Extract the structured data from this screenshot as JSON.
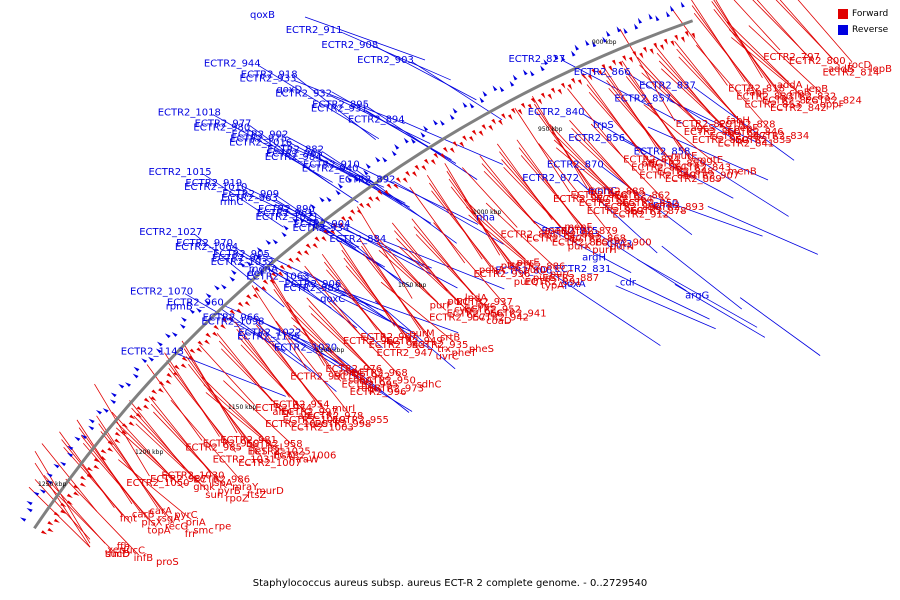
{
  "caption": "Staphylococcus aureus subsp. aureus ECT-R 2 complete genome. - 0..2729540",
  "legend": [
    {
      "label": "Forward",
      "color": "#e00000"
    },
    {
      "label": "Reverse",
      "color": "#0000e0"
    }
  ],
  "ticks": [
    "900 kbp",
    "950 kbp",
    "1000 kbp",
    "1050 kbp",
    "1100 kbp",
    "1150 kbp",
    "1200 kbp",
    "1250 kbp"
  ],
  "colors": {
    "forward": "#e00000",
    "reverse": "#0000e0",
    "backbone": "#808080"
  },
  "reverse_labels": [
    "qoxB",
    "ECTR2_911",
    "ECTR2_908",
    "ECTR2_903",
    "ECTR2_918",
    "qoxD",
    "ECTR2_895",
    "ECTR2_894",
    "ECTR2_902",
    "ECTR2_882",
    "ECTR2_910",
    "ECTR2_892",
    "ECTR2_909",
    "ECTR2_890",
    "ECTR2_904",
    "ECTR2_884",
    "ECTR2_905",
    "menA",
    "ECTR2_906",
    "qoxC",
    "ECTR2_944",
    "ECTR2_933",
    "ECTR2_932",
    "ECTR2_931",
    "ECTR2_977",
    "ECTR2_975",
    "ECTR2_965",
    "ECTR2_940",
    "ECTR2_919",
    "ECTR2_963",
    "ECTR2_961",
    "ECTR2_934",
    "ECTR2_970",
    "ECTR2_945",
    "def",
    "ECTR2_983",
    "ECTR2_960",
    "ECTR2_966",
    "ECTR2_1022",
    "ECTR2_1020",
    "ECTR2_1018",
    "ECTR2_980",
    "ECTR2_1016",
    "ECTR2_984",
    "ECTR2_1015",
    "ECTR2_1010",
    "rnhC",
    "ECTR2_1021",
    "ECTR2_1027",
    "ECTR2_1064",
    "ECTR2_1032",
    "ECTR2_1063",
    "ECTR2_1070",
    "rpmB",
    "ECTR2_1098",
    "ECTR2_1155",
    "ECTR2_1143",
    "ECTR2_831",
    "cdr",
    "argG",
    "ECTR2_827",
    "ECTR2_866",
    "ECTR2_837",
    "ECTR2_857",
    "ECTR2_840",
    "trpS",
    "ECTR2_856",
    "ECTR2_858",
    "ECTR2_870",
    "ECTR2_872",
    "mnhC",
    "phaD",
    "nha",
    "ECTR2_815",
    "CPA3",
    "argH",
    "ECTR2_806",
    "qoxA"
  ],
  "forward_labels": [
    "ECTR2_797",
    "ECTR2_800",
    "rocD",
    "lepB",
    "addA",
    "lepB",
    "addB",
    "ECTR2_814",
    "ECTR2_818",
    "clpB",
    "ECTR2_832",
    "ECTR2_824",
    "fabF",
    "ECTR2_833",
    "ECTR2_825",
    "oppF",
    "fabH",
    "ECTR2_828",
    "ECTR2_853",
    "ECTR2_842",
    "ECTR2_829",
    "pepF",
    "ECTR2_846",
    "ECTR2_834",
    "agcS",
    "ECTR2_860",
    "ECTR2_847",
    "ECTR2_835",
    "murE",
    "mgtE",
    "ECTR2_850",
    "ECTR2_841",
    "ECTR2_874",
    "ECTR2_859",
    "ECTR2_843",
    "menB",
    "prfC",
    "ECTR2_861",
    "ECTR2_848",
    "ECTR2_907",
    "ECTR2_888",
    "ECTR2_862",
    "ECTR2_849",
    "ECTR2_889",
    "ECTR2_876",
    "ECTR2_864",
    "ECTR2_852",
    "ECTR2_893",
    "ECTR2_877",
    "ECTR2_865",
    "ECTR2_896",
    "ECTR2_878",
    "menF",
    "ECTR2_879",
    "ECTR2_869",
    "ECTR2_912",
    "menD",
    "ECTR2_883",
    "ECTR2_868",
    "ECTR2_900",
    "ECTR2_871",
    "ECTR2_917",
    "ECTR2_885",
    "purN",
    "purE",
    "ECTR2_886",
    "purK",
    "purH",
    "ptsP",
    "purD",
    "purC",
    "ECTR2_887",
    "pdhA",
    "ECTR2_936",
    "purS",
    "ECTR2_891",
    "lpdA",
    "ECTR2_937",
    "purQ",
    "typA",
    "purL",
    "pyc",
    "ECTR2_952",
    "ECTR2_941",
    "purF",
    "cyoE",
    "ECTR2_956",
    "ECTR2_942",
    "purM",
    "srtB",
    "ECTR2_957",
    "coaD",
    "ECTR2_967",
    "ECTR2_949",
    "ECTR2_935",
    "pheS",
    "ECTR2_962",
    "ECTR2_943",
    "trx",
    "pheT",
    "ECTR2_976",
    "ECTR2_968",
    "ECTR2_947",
    "uvrC",
    "rpmF",
    "ECTR2_972",
    "ECTR2_950",
    "sdhC",
    "ECTR2_991",
    "sdhA",
    "ECTR2_995",
    "ECTR2_973",
    "ECTR2_954",
    "murI",
    "rdgB",
    "ECTR2_996",
    "ECTR2_974",
    "ECTR2_997",
    "ECTR2_978",
    "ECTR2_955",
    "argF",
    "arcC",
    "ECTR2_1019",
    "ECTR2_998",
    "ECTR2_981",
    "ECTR2_958",
    "ECTR2_1029",
    "ECTR2_1003",
    "ECTR2_959",
    "ftsL",
    "ECTR2_1025",
    "ECTR2_1006",
    "ECTR2_985",
    "ileS",
    "ftsA",
    "mraW",
    "ECTR2_1030",
    "ECTR2_986",
    "ECTR2_1031",
    "ECTR2_1007",
    "ECTR2_987",
    "lspA",
    "mraY",
    "murD",
    "ECTR2_1050",
    "gmk",
    "pyrB",
    "ftsZ",
    "carA",
    "pyrC",
    "sun",
    "rpoZ",
    "carB",
    "rsgA",
    "priA",
    "rpe",
    "fmt",
    "plsX",
    "recG",
    "smc",
    "ffh",
    "sucC",
    "topA",
    "frr",
    "xerC",
    "trmD",
    "infB",
    "proS",
    "sucD"
  ]
}
